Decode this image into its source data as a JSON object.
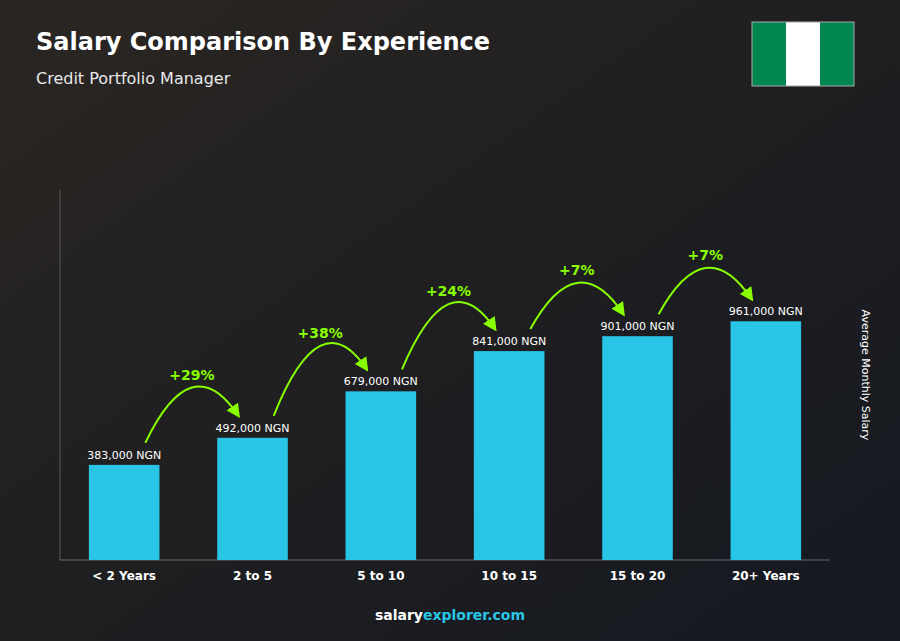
{
  "chart_data": {
    "type": "bar",
    "title": "Salary Comparison By Experience",
    "subtitle": "Credit Portfolio Manager",
    "y_label": "Average Monthly Salary",
    "categories": [
      "< 2 Years",
      "2 to 5",
      "5 to 10",
      "10 to 15",
      "15 to 20",
      "20+ Years"
    ],
    "values": [
      383000,
      492000,
      679000,
      841000,
      901000,
      961000
    ],
    "value_labels": [
      "383,000 NGN",
      "492,000 NGN",
      "679,000 NGN",
      "841,000 NGN",
      "901,000 NGN",
      "961,000 NGN"
    ],
    "data_labels": true,
    "annotations": [
      "+29%",
      "+38%",
      "+24%",
      "+7%",
      "+7%"
    ],
    "footer": [
      "salary",
      "explorer.com"
    ],
    "color": "#29c5e6",
    "ylim": [
      0,
      1489550
    ],
    "tick_labels": "x",
    "grid": false
  }
}
